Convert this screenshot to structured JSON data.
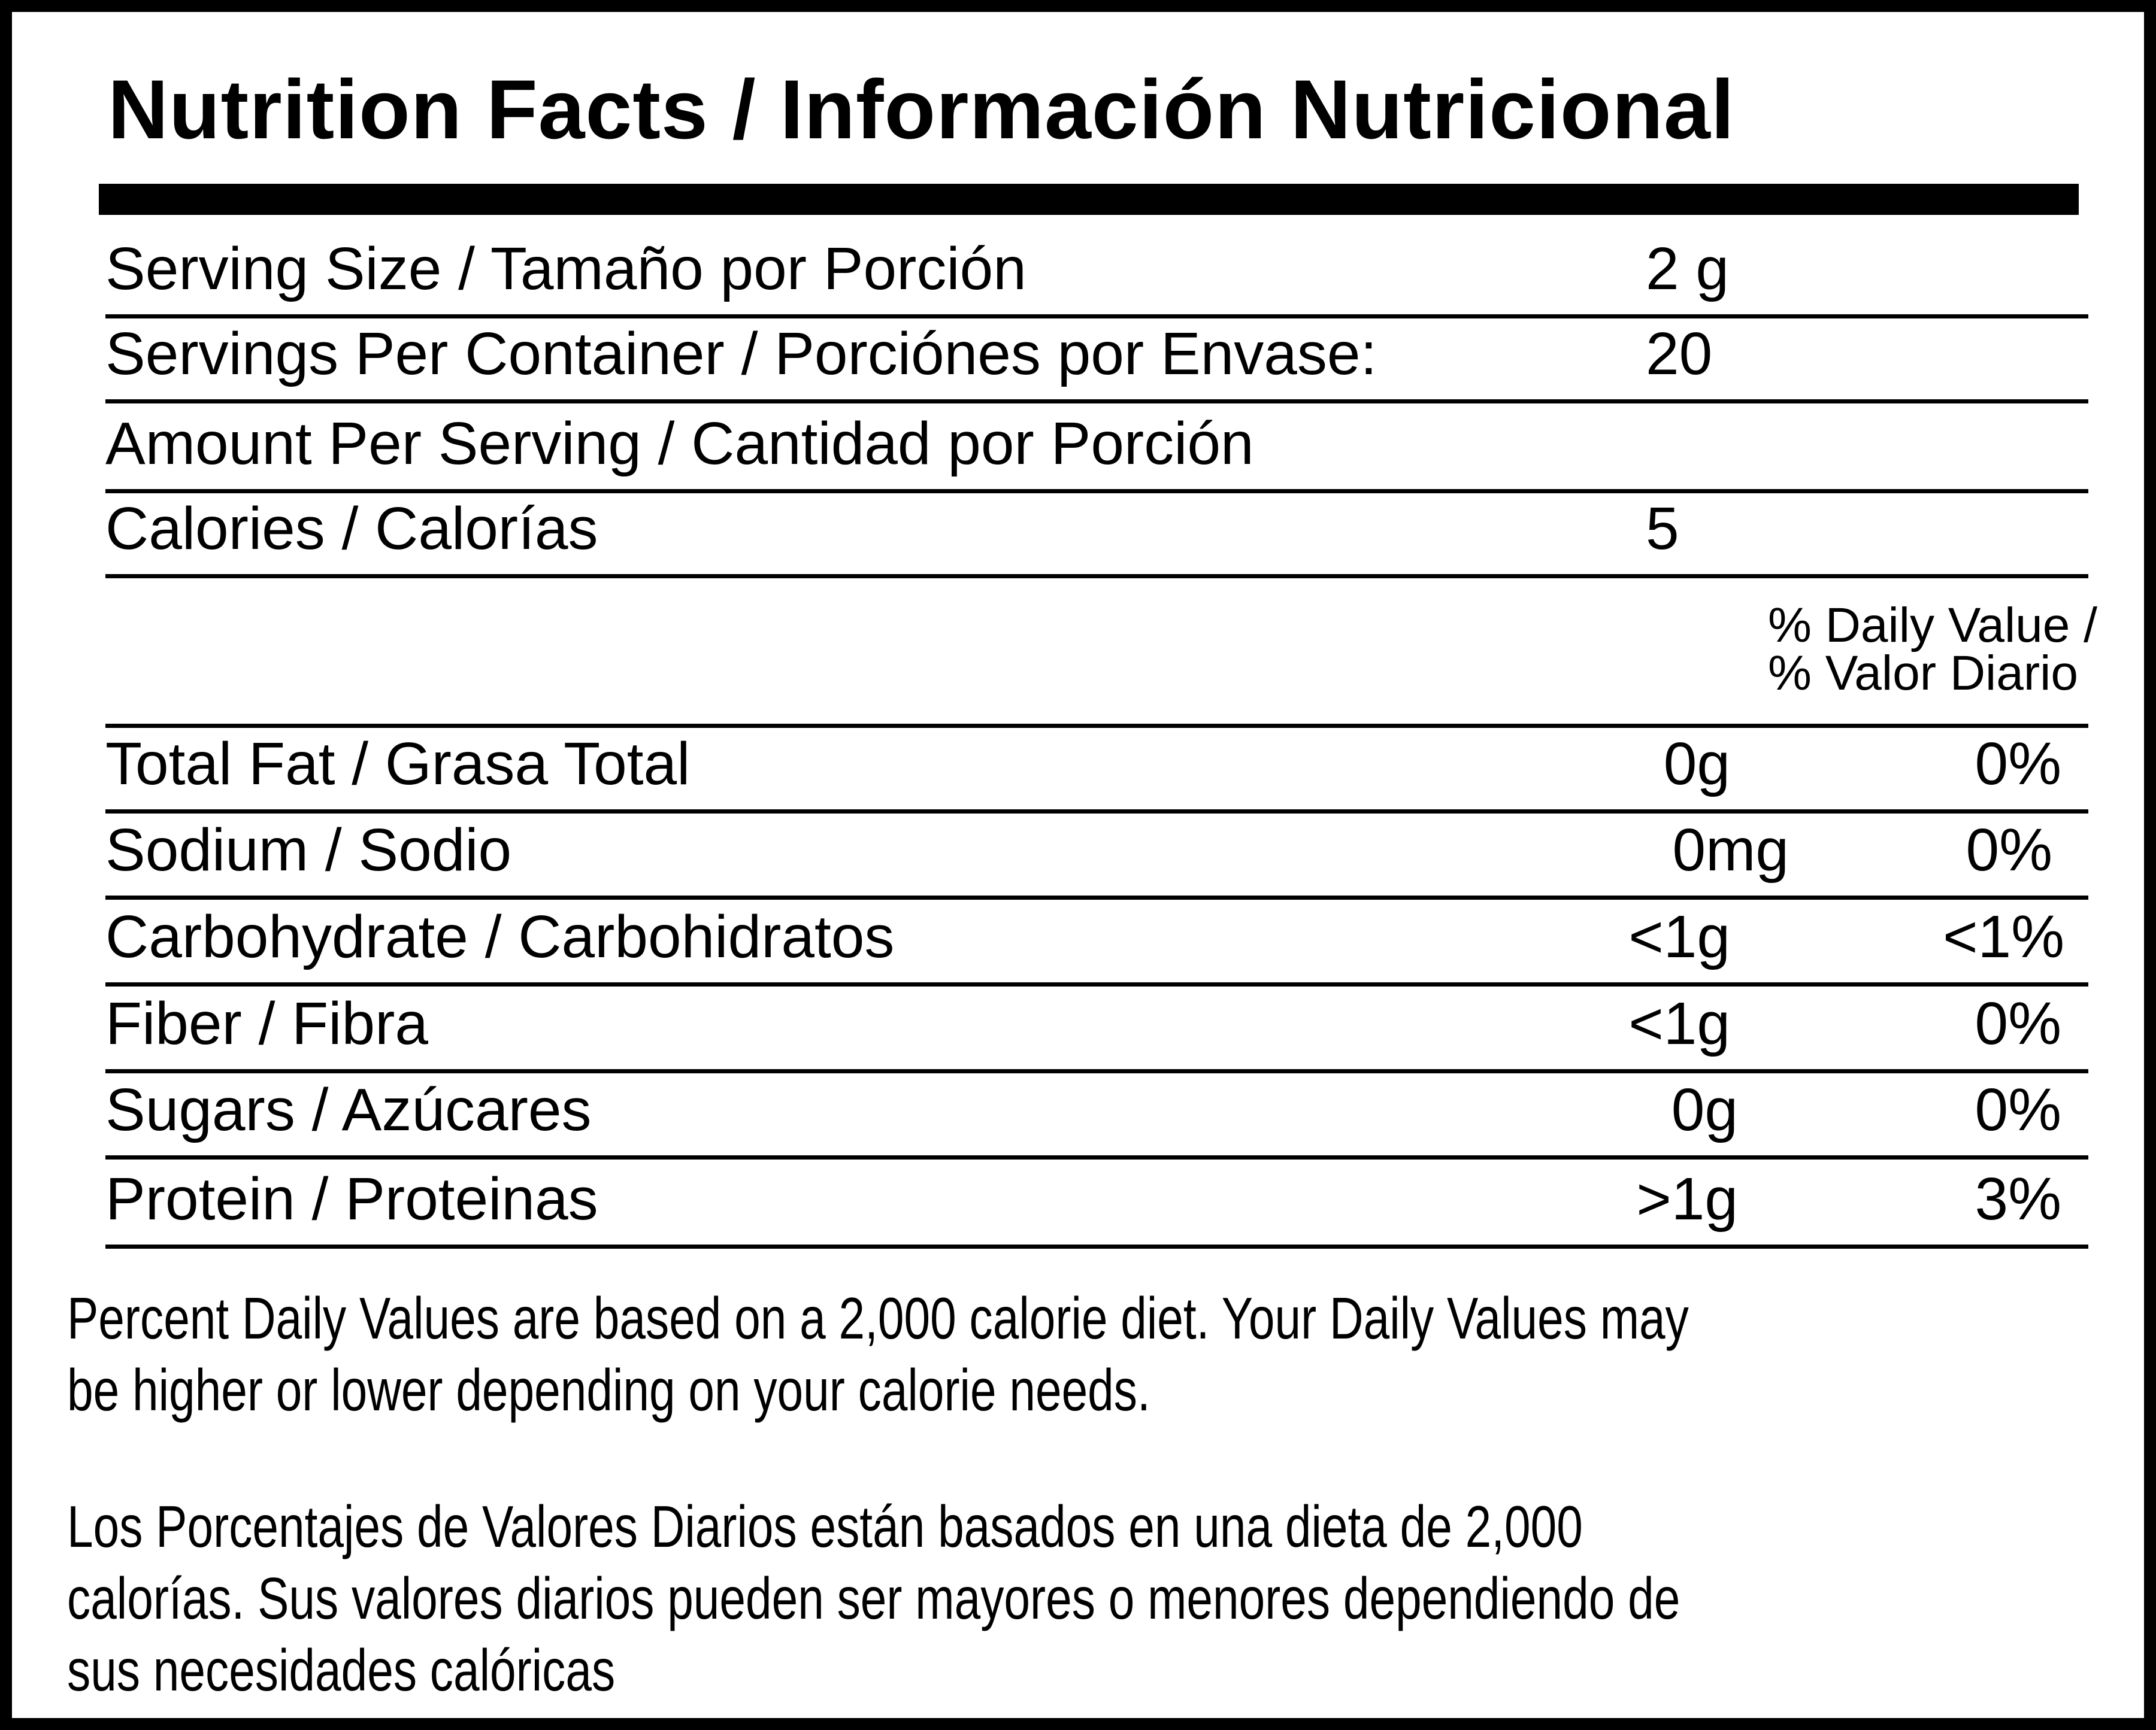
{
  "title": "Nutrition Facts / Información Nutricional",
  "serving": {
    "size_label": "Serving Size / Tamaño por Porción",
    "size_value": "2 g",
    "per_container_label": "Servings Per Container / Porciónes por Envase:",
    "per_container_value": "20",
    "amount_label": "Amount Per Serving / Cantidad por Porción",
    "calories_label": "Calories / Calorías",
    "calories_value": "5"
  },
  "daily_value_header": [
    "% Daily Value /",
    "% Valor Diario"
  ],
  "nutrients": [
    {
      "label": "Total Fat / Grasa Total",
      "amount": "0g",
      "percent": "0%"
    },
    {
      "label": "Sodium / Sodio",
      "amount": "0mg",
      "percent": "0%"
    },
    {
      "label": "Carbohydrate / Carbohidratos",
      "amount": "<1g",
      "percent": "<1%"
    },
    {
      "label": "Fiber / Fibra",
      "amount": "<1g",
      "percent": "0%"
    },
    {
      "label": "Sugars / Azúcares",
      "amount": "0g",
      "percent": "0%"
    },
    {
      "label": "Protein / Proteinas",
      "amount": ">1g",
      "percent": "3%"
    }
  ],
  "footnote_en": [
    "Percent Daily Values are based on a 2,000 calorie diet. Your Daily Values may",
    "be higher or lower depending on your calorie needs."
  ],
  "footnote_es": [
    "Los Porcentajes de Valores Diarios están basados en una dieta de 2,000",
    "calorías. Sus valores diarios pueden ser mayores o menores dependiendo de",
    "sus necesidades calóricas"
  ]
}
